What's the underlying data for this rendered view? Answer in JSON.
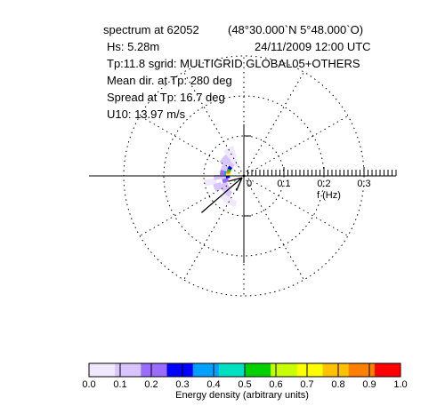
{
  "header": {
    "spectrum_label": "spectrum at 62052",
    "position": "(48°30.000`N   5°48.000`O)",
    "hs": "Hs: 5.28m",
    "datetime": "24/11/2009 12:00 UTC",
    "tp_grid": "Tp:11.8 sgrid: MULTIGRID GLOBAL05+OTHERS",
    "mean_dir": "Mean dir. at Tp:  280 deg",
    "spread": "Spread at Tp:  16.7 deg",
    "u10": "U10: 13.97 m/s"
  },
  "chart_data": {
    "type": "heatmap",
    "subtype": "polar directional wave spectrum",
    "radial_axis": {
      "label": "f (Hz)",
      "ticks": [
        0,
        0.1,
        0.2,
        0.3
      ],
      "tick_labels": [
        "0",
        "0.1",
        "0.2",
        "0.3"
      ],
      "range": [
        0,
        0.38
      ]
    },
    "rings_hz": [
      0.1,
      0.2,
      0.3
    ],
    "radial_spokes_deg": [
      0,
      30,
      60,
      90,
      120,
      150,
      180,
      210,
      240,
      270,
      300,
      330
    ],
    "mean_direction_deg": 280,
    "peak_period_s": 11.8,
    "spread_deg": 16.7,
    "wind_speed_ms": 13.97,
    "wind_arrow_direction_deg": 229,
    "colorbar": {
      "label": "Energy density (arbitrary units)",
      "range": [
        0,
        1
      ],
      "ticks": [
        0.0,
        0.1,
        0.2,
        0.3,
        0.4,
        0.5,
        0.6,
        0.7,
        0.8,
        0.9,
        1.0
      ],
      "tick_labels": [
        "0.0",
        "0.1",
        "0.2",
        "0.3",
        "0.4",
        "0.5",
        "0.6",
        "0.7",
        "0.8",
        "0.9",
        "1.0"
      ],
      "colors": [
        "#f0e8ff",
        "#d8c4ff",
        "#9a6cff",
        "#0000ff",
        "#00a0ff",
        "#00e0c0",
        "#00d000",
        "#c8ff00",
        "#ffff00",
        "#ffc000",
        "#ff8000",
        "#ff0000"
      ]
    },
    "cells": [
      {
        "dir_from": 195,
        "dir_to": 225,
        "f_from": 0.065,
        "f_to": 0.08,
        "value": 0.02
      },
      {
        "dir_from": 215,
        "dir_to": 240,
        "f_from": 0.05,
        "f_to": 0.065,
        "value": 0.05
      },
      {
        "dir_from": 205,
        "dir_to": 230,
        "f_from": 0.065,
        "f_to": 0.08,
        "value": 0.04
      },
      {
        "dir_from": 230,
        "dir_to": 250,
        "f_from": 0.045,
        "f_to": 0.06,
        "value": 0.1
      },
      {
        "dir_from": 240,
        "dir_to": 255,
        "f_from": 0.06,
        "f_to": 0.08,
        "value": 0.06
      },
      {
        "dir_from": 255,
        "dir_to": 265,
        "f_from": 0.07,
        "f_to": 0.1,
        "value": 0.02
      },
      {
        "dir_from": 250,
        "dir_to": 262,
        "f_from": 0.04,
        "f_to": 0.055,
        "value": 0.16
      },
      {
        "dir_from": 262,
        "dir_to": 272,
        "f_from": 0.045,
        "f_to": 0.06,
        "value": 0.12
      },
      {
        "dir_from": 262,
        "dir_to": 272,
        "f_from": 0.06,
        "f_to": 0.075,
        "value": 0.06
      },
      {
        "dir_from": 272,
        "dir_to": 285,
        "f_from": 0.04,
        "f_to": 0.05,
        "value": 0.35
      },
      {
        "dir_from": 272,
        "dir_to": 285,
        "f_from": 0.05,
        "f_to": 0.06,
        "value": 0.14
      },
      {
        "dir_from": 278,
        "dir_to": 286,
        "f_from": 0.035,
        "f_to": 0.045,
        "value": 0.95
      },
      {
        "dir_from": 270,
        "dir_to": 278,
        "f_from": 0.035,
        "f_to": 0.045,
        "value": 0.7
      },
      {
        "dir_from": 286,
        "dir_to": 294,
        "f_from": 0.035,
        "f_to": 0.045,
        "value": 0.55
      },
      {
        "dir_from": 262,
        "dir_to": 270,
        "f_from": 0.035,
        "f_to": 0.045,
        "value": 0.3
      },
      {
        "dir_from": 294,
        "dir_to": 305,
        "f_from": 0.035,
        "f_to": 0.045,
        "value": 0.3
      },
      {
        "dir_from": 285,
        "dir_to": 300,
        "f_from": 0.045,
        "f_to": 0.06,
        "value": 0.12
      },
      {
        "dir_from": 305,
        "dir_to": 318,
        "f_from": 0.035,
        "f_to": 0.05,
        "value": 0.12
      },
      {
        "dir_from": 300,
        "dir_to": 320,
        "f_from": 0.05,
        "f_to": 0.07,
        "value": 0.05
      },
      {
        "dir_from": 318,
        "dir_to": 335,
        "f_from": 0.03,
        "f_to": 0.05,
        "value": 0.04
      },
      {
        "dir_from": 320,
        "dir_to": 340,
        "f_from": 0.05,
        "f_to": 0.08,
        "value": 0.02
      }
    ]
  }
}
